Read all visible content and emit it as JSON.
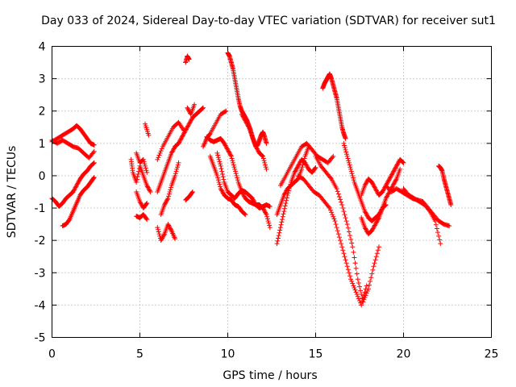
{
  "chart_data": {
    "type": "scatter",
    "title": "Day 033 of 2024, Sidereal Day-to-day VTEC variation (SDTVAR) for receiver sut1",
    "xlabel": "GPS time / hours",
    "ylabel": "SDTVAR / TECUs",
    "xlim": [
      0,
      25
    ],
    "ylim": [
      -5,
      4
    ],
    "xticks": [
      "0",
      "5",
      "10",
      "15",
      "20",
      "25"
    ],
    "yticks": [
      "4",
      "3",
      "2",
      "1",
      "0",
      "-1",
      "-2",
      "-3",
      "-4",
      "-5"
    ],
    "grid": true,
    "marker": "+",
    "marker_color": "#ff0000",
    "series": [
      {
        "name": "s1",
        "x": [
          0.0,
          0.3,
          0.6,
          0.9,
          1.2,
          1.4,
          1.6,
          1.8,
          2.0,
          2.2,
          2.4
        ],
        "y": [
          1.05,
          1.15,
          1.25,
          1.35,
          1.45,
          1.55,
          1.45,
          1.3,
          1.15,
          1.0,
          0.95
        ]
      },
      {
        "name": "s2",
        "x": [
          0.0,
          0.3,
          0.6,
          0.9,
          1.2,
          1.5,
          1.8,
          2.1,
          2.4
        ],
        "y": [
          1.1,
          1.0,
          1.1,
          1.0,
          0.9,
          0.85,
          0.7,
          0.55,
          0.75
        ]
      },
      {
        "name": "s3",
        "x": [
          0.0,
          0.2,
          0.4,
          0.6,
          0.8,
          1.0,
          1.2,
          1.4,
          1.6,
          1.8,
          2.0,
          2.2,
          2.4
        ],
        "y": [
          -0.7,
          -0.8,
          -0.95,
          -0.85,
          -0.7,
          -0.6,
          -0.5,
          -0.3,
          -0.1,
          0.05,
          0.15,
          0.3,
          0.4
        ]
      },
      {
        "name": "s4",
        "x": [
          0.6,
          0.8,
          1.0,
          1.2,
          1.4,
          1.6,
          1.8,
          2.0,
          2.2,
          2.4
        ],
        "y": [
          -1.55,
          -1.5,
          -1.35,
          -1.1,
          -0.85,
          -0.6,
          -0.45,
          -0.35,
          -0.2,
          -0.05
        ]
      },
      {
        "name": "s5",
        "x": [
          4.5,
          4.6,
          4.8,
          5.0,
          5.2,
          5.4,
          5.6
        ],
        "y": [
          0.5,
          0.1,
          -0.2,
          0.3,
          0.0,
          -0.3,
          -0.5
        ]
      },
      {
        "name": "s6",
        "x": [
          4.8,
          5.0,
          5.2,
          5.4
        ],
        "y": [
          0.7,
          0.4,
          0.5,
          0.1
        ]
      },
      {
        "name": "s7",
        "x": [
          4.8,
          5.0,
          5.2,
          5.4
        ],
        "y": [
          -0.5,
          -0.8,
          -1.0,
          -0.85
        ]
      },
      {
        "name": "s8",
        "x": [
          4.8,
          5.0,
          5.2,
          5.4
        ],
        "y": [
          -1.25,
          -1.3,
          -1.2,
          -1.35
        ]
      },
      {
        "name": "s9",
        "x": [
          5.3,
          5.5
        ],
        "y": [
          1.6,
          1.25
        ]
      },
      {
        "name": "s10",
        "x": [
          6.0,
          6.3,
          6.6,
          6.9,
          7.2,
          7.5
        ],
        "y": [
          0.5,
          0.9,
          1.2,
          1.5,
          1.65,
          1.4
        ]
      },
      {
        "name": "s11",
        "x": [
          6.0,
          6.2,
          6.4,
          6.6,
          6.8,
          7.0,
          7.2,
          7.4,
          7.6,
          7.8,
          8.0,
          8.2,
          8.4,
          8.6
        ],
        "y": [
          -0.5,
          -0.2,
          0.1,
          0.4,
          0.7,
          0.9,
          1.0,
          1.2,
          1.4,
          1.6,
          1.8,
          1.9,
          2.0,
          2.1
        ]
      },
      {
        "name": "s12",
        "x": [
          6.0,
          6.2,
          6.4,
          6.6,
          6.8,
          7.0
        ],
        "y": [
          -1.6,
          -2.0,
          -1.8,
          -1.5,
          -1.7,
          -1.95
        ]
      },
      {
        "name": "s13",
        "x": [
          6.2,
          6.4,
          6.6,
          6.8,
          7.0,
          7.2
        ],
        "y": [
          -1.2,
          -0.9,
          -0.7,
          -0.3,
          0.0,
          0.4
        ]
      },
      {
        "name": "s14",
        "x": [
          7.6,
          7.7,
          7.8
        ],
        "y": [
          3.5,
          3.7,
          3.6
        ]
      },
      {
        "name": "s15",
        "x": [
          7.7,
          7.9,
          8.1
        ],
        "y": [
          2.1,
          1.9,
          2.2
        ]
      },
      {
        "name": "s16",
        "x": [
          7.6,
          7.8,
          8.0
        ],
        "y": [
          -0.75,
          -0.65,
          -0.5
        ]
      },
      {
        "name": "s17",
        "x": [
          8.6,
          8.8,
          9.0,
          9.3,
          9.6,
          9.9
        ],
        "y": [
          0.9,
          1.15,
          1.3,
          1.6,
          1.9,
          2.0
        ]
      },
      {
        "name": "s18",
        "x": [
          8.8,
          9.0,
          9.2,
          9.4,
          9.6,
          9.8,
          10.0,
          10.2,
          10.4,
          10.6,
          10.8,
          11.0,
          11.2,
          11.4,
          11.6,
          11.8,
          12.0,
          12.2,
          12.4
        ],
        "y": [
          1.2,
          1.1,
          1.05,
          1.1,
          1.15,
          1.0,
          0.8,
          0.6,
          0.2,
          -0.2,
          -0.5,
          -0.7,
          -0.8,
          -0.85,
          -0.9,
          -0.9,
          -1.0,
          -1.2,
          -1.6
        ]
      },
      {
        "name": "s19",
        "x": [
          9.0,
          9.2,
          9.4,
          9.6,
          9.8,
          10.0,
          10.2,
          10.4,
          10.6,
          10.8,
          11.0
        ],
        "y": [
          0.6,
          0.3,
          0.0,
          -0.4,
          -0.6,
          -0.7,
          -0.75,
          -0.9,
          -0.95,
          -1.1,
          -1.2
        ]
      },
      {
        "name": "s20",
        "x": [
          9.4,
          9.6,
          9.8,
          10.0,
          10.2,
          10.4,
          10.6,
          10.8,
          11.0,
          11.2,
          11.4,
          11.6,
          11.8,
          12.0,
          12.2,
          12.4
        ],
        "y": [
          0.7,
          0.3,
          -0.2,
          -0.5,
          -0.6,
          -0.7,
          -0.55,
          -0.45,
          -0.5,
          -0.6,
          -0.7,
          -0.9,
          -1.0,
          -0.95,
          -0.9,
          -0.95
        ]
      },
      {
        "name": "s21",
        "x": [
          10.0,
          10.1,
          10.2,
          10.3,
          10.4,
          10.5,
          10.6,
          10.7,
          10.8,
          10.9,
          11.0,
          11.1,
          11.2,
          11.3,
          11.4,
          11.5,
          11.6,
          11.7,
          11.8,
          11.9,
          12.0,
          12.1,
          12.2
        ],
        "y": [
          3.8,
          3.7,
          3.5,
          3.3,
          3.0,
          2.7,
          2.4,
          2.15,
          2.0,
          1.9,
          1.8,
          1.7,
          1.55,
          1.4,
          1.2,
          1.05,
          0.9,
          0.95,
          1.1,
          1.25,
          1.35,
          1.2,
          1.0
        ]
      },
      {
        "name": "s22",
        "x": [
          10.8,
          11.0,
          11.2,
          11.4,
          11.6,
          11.8,
          12.0,
          12.2
        ],
        "y": [
          1.9,
          1.7,
          1.5,
          1.2,
          0.9,
          0.7,
          0.6,
          0.2
        ]
      },
      {
        "name": "s23",
        "x": [
          12.8,
          13.0,
          13.2,
          13.4,
          13.6,
          13.8,
          14.0,
          14.2,
          14.4,
          14.6,
          14.8,
          15.0
        ],
        "y": [
          -2.1,
          -1.6,
          -1.1,
          -0.6,
          -0.2,
          0.1,
          0.3,
          0.5,
          0.4,
          0.2,
          0.1,
          0.25
        ]
      },
      {
        "name": "s24",
        "x": [
          12.8,
          13.0,
          13.2,
          13.4,
          13.6,
          13.8,
          14.0,
          14.2,
          14.4,
          14.6
        ],
        "y": [
          -1.2,
          -0.9,
          -0.6,
          -0.4,
          -0.3,
          -0.2,
          -0.1,
          0.2,
          0.6,
          0.9
        ]
      },
      {
        "name": "s25",
        "x": [
          13.0,
          13.3,
          13.6,
          13.9,
          14.2,
          14.5,
          14.8,
          15.1,
          15.4,
          15.7,
          16.0
        ],
        "y": [
          -0.3,
          0.0,
          0.3,
          0.6,
          0.9,
          1.0,
          0.8,
          0.6,
          0.5,
          0.4,
          0.6
        ]
      },
      {
        "name": "s26",
        "x": [
          14.0,
          14.3,
          14.6,
          14.9,
          15.2,
          15.5,
          15.8,
          16.1,
          16.4,
          16.7,
          17.0,
          17.3,
          17.6,
          17.9
        ],
        "y": [
          0.0,
          -0.1,
          -0.3,
          -0.5,
          -0.6,
          -0.8,
          -1.0,
          -1.4,
          -2.0,
          -2.6,
          -3.2,
          -3.6,
          -4.0,
          -3.4
        ]
      },
      {
        "name": "s27",
        "x": [
          15.0,
          15.3,
          15.6,
          15.9,
          16.2,
          16.5,
          16.8,
          17.1,
          17.4,
          17.7,
          18.0,
          18.3,
          18.6
        ],
        "y": [
          0.6,
          0.3,
          0.1,
          -0.1,
          -0.4,
          -0.9,
          -1.5,
          -2.2,
          -3.2,
          -3.9,
          -3.5,
          -2.8,
          -2.2
        ]
      },
      {
        "name": "s28",
        "x": [
          15.4,
          15.5,
          15.6,
          15.7,
          15.8,
          15.9,
          16.0,
          16.1,
          16.2,
          16.3,
          16.4,
          16.5,
          16.6,
          16.7
        ],
        "y": [
          2.7,
          2.85,
          2.95,
          3.05,
          3.15,
          3.0,
          2.8,
          2.6,
          2.4,
          2.1,
          1.8,
          1.5,
          1.3,
          1.15
        ]
      },
      {
        "name": "s29",
        "x": [
          16.6,
          16.8,
          17.0,
          17.2,
          17.4,
          17.6,
          17.8,
          18.0,
          18.2,
          18.4,
          18.6,
          18.8,
          19.0
        ],
        "y": [
          1.0,
          0.6,
          0.2,
          -0.2,
          -0.5,
          -0.8,
          -1.1,
          -1.3,
          -1.4,
          -1.3,
          -1.2,
          -1.0,
          -0.9
        ]
      },
      {
        "name": "s30",
        "x": [
          17.6,
          17.8,
          18.0,
          18.2,
          18.4,
          18.6,
          18.8,
          19.0,
          19.2,
          19.4,
          19.6,
          19.8
        ],
        "y": [
          -1.3,
          -1.6,
          -1.8,
          -1.7,
          -1.5,
          -1.3,
          -1.0,
          -0.7,
          -0.5,
          -0.3,
          -0.1,
          0.2
        ]
      },
      {
        "name": "s31",
        "x": [
          17.6,
          17.8,
          18.0,
          18.2,
          18.4,
          18.6,
          18.8,
          19.0,
          19.2,
          19.4,
          19.6,
          19.8,
          20.0
        ],
        "y": [
          -0.6,
          -0.3,
          -0.1,
          -0.2,
          -0.4,
          -0.6,
          -0.5,
          -0.3,
          -0.1,
          0.1,
          0.3,
          0.5,
          0.4
        ]
      },
      {
        "name": "s32",
        "x": [
          19.0,
          19.3,
          19.6,
          19.9,
          20.2,
          20.5,
          20.8,
          21.1,
          21.4,
          21.7,
          22.0,
          22.3,
          22.6
        ],
        "y": [
          -0.3,
          -0.5,
          -0.4,
          -0.5,
          -0.6,
          -0.7,
          -0.75,
          -0.8,
          -1.0,
          -1.2,
          -1.4,
          -1.5,
          -1.55
        ]
      },
      {
        "name": "s33",
        "x": [
          20.0,
          20.3,
          20.6,
          20.9,
          21.2,
          21.5,
          21.8,
          22.1
        ],
        "y": [
          -0.4,
          -0.6,
          -0.7,
          -0.8,
          -0.9,
          -1.1,
          -1.4,
          -2.1
        ]
      },
      {
        "name": "s34",
        "x": [
          22.0,
          22.1,
          22.2,
          22.3,
          22.4,
          22.5,
          22.6,
          22.7
        ],
        "y": [
          0.3,
          0.25,
          0.15,
          -0.1,
          -0.3,
          -0.5,
          -0.7,
          -0.9
        ]
      }
    ]
  }
}
